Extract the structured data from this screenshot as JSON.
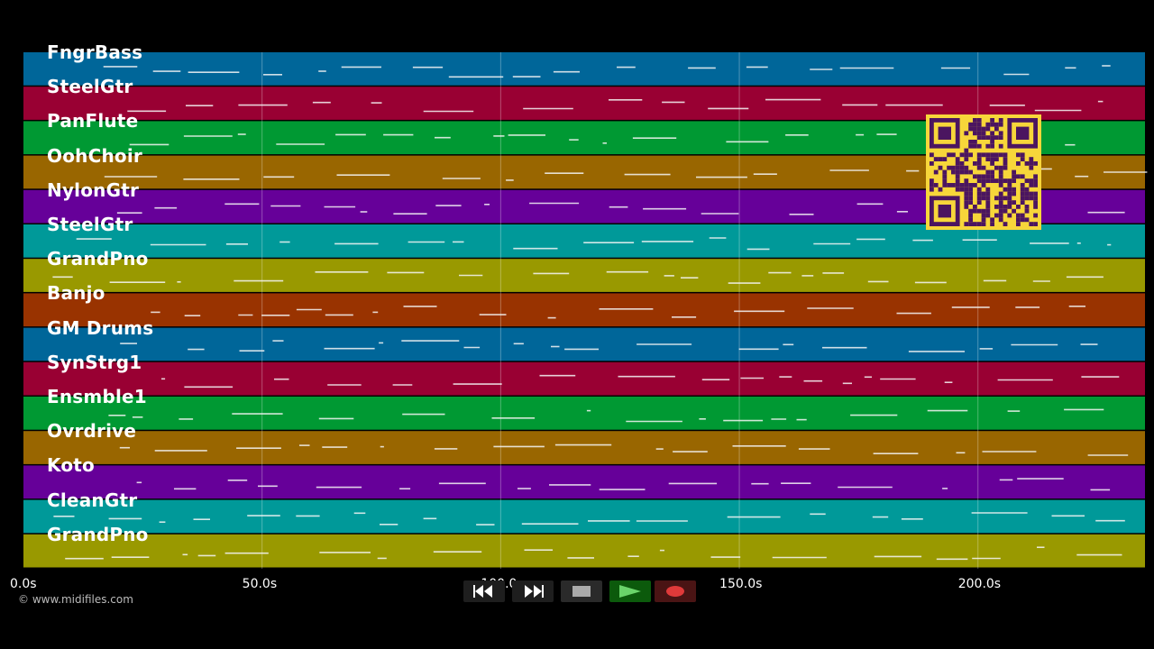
{
  "tracks": [
    {
      "label": "FngrBass",
      "color": "#006699"
    },
    {
      "label": "SteelGtr",
      "color": "#990033"
    },
    {
      "label": "PanFlute",
      "color": "#009933"
    },
    {
      "label": "OohChoir",
      "color": "#996600"
    },
    {
      "label": "NylonGtr",
      "color": "#660099"
    },
    {
      "label": "SteelGtr",
      "color": "#009999"
    },
    {
      "label": "GrandPno",
      "color": "#999900"
    },
    {
      "label": "Banjo",
      "color": "#993300"
    },
    {
      "label": "GM Drums",
      "color": "#006699"
    },
    {
      "label": "SynStrg1",
      "color": "#990033"
    },
    {
      "label": "Ensmble1",
      "color": "#009933"
    },
    {
      "label": "Ovrdrive",
      "color": "#996600"
    },
    {
      "label": "Koto",
      "color": "#660099"
    },
    {
      "label": "CleanGtr",
      "color": "#009999"
    },
    {
      "label": "GrandPno",
      "color": "#999900"
    }
  ],
  "timeline": {
    "min": 0,
    "max": 235,
    "ticks": [
      {
        "value": 0,
        "label": "0.0s"
      },
      {
        "value": 50,
        "label": "50.0s"
      },
      {
        "value": 100,
        "label": "100.0s"
      },
      {
        "value": 150,
        "label": "150.0s"
      },
      {
        "value": 200,
        "label": "200.0s"
      }
    ]
  },
  "copyright": "© www.midifiles.com",
  "transport": [
    {
      "name": "rewind-button",
      "icon": "rewind-icon",
      "bg": "#1e1e1e"
    },
    {
      "name": "fast-forward-button",
      "icon": "fast-forward-icon",
      "bg": "#1e1e1e"
    },
    {
      "name": "stop-button",
      "icon": "stop-icon",
      "bg": "#2a2a2a"
    },
    {
      "name": "play-button",
      "icon": "play-icon",
      "bg": "#0c5a0c"
    },
    {
      "name": "record-button",
      "icon": "record-icon",
      "bg": "#4a1414"
    }
  ],
  "qr": {
    "fg": "#4b1560",
    "bg": "#f7d63a"
  }
}
